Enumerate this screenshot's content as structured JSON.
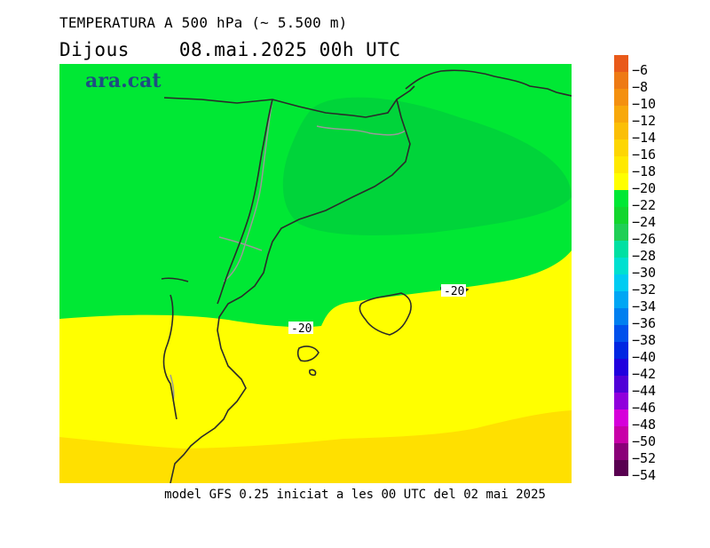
{
  "header": {
    "title": "TEMPERATURA A 500 hPa (~ 5.500 m)",
    "day": "Dijous",
    "datetime": "08.mai.2025 00h UTC"
  },
  "map": {
    "logo": "ara.cat",
    "contour_labels": [
      "-20",
      "-20"
    ],
    "colors": {
      "green_dark": "#00d43a",
      "green_light": "#00e834",
      "yellow": "#ffff00",
      "orange_yellow": "#ffe000",
      "coast": "#2a2a2a",
      "border": "#9a9a9a"
    }
  },
  "caption": "model GFS 0.25 iniciat a les 00 UTC del 02 mai 2025",
  "legend": {
    "labels": [
      "-6",
      "-8",
      "-10",
      "-12",
      "-14",
      "-16",
      "-18",
      "-20",
      "-22",
      "-24",
      "-26",
      "-28",
      "-30",
      "-32",
      "-34",
      "-36",
      "-38",
      "-40",
      "-42",
      "-44",
      "-46",
      "-48",
      "-50",
      "-52",
      "-54"
    ],
    "colors": [
      "#e95a1a",
      "#ee7a14",
      "#f4900f",
      "#f8a80a",
      "#fbbf06",
      "#fdd603",
      "#ffe900",
      "#ffff00",
      "#00e834",
      "#13d62e",
      "#1fcf55",
      "#00e0a2",
      "#00e0d0",
      "#00ccf2",
      "#00a6f4",
      "#007ff0",
      "#0050ec",
      "#0026e2",
      "#2000de",
      "#5000d8",
      "#9000dc",
      "#d600da",
      "#c800a8",
      "#8a0078",
      "#580050"
    ]
  }
}
